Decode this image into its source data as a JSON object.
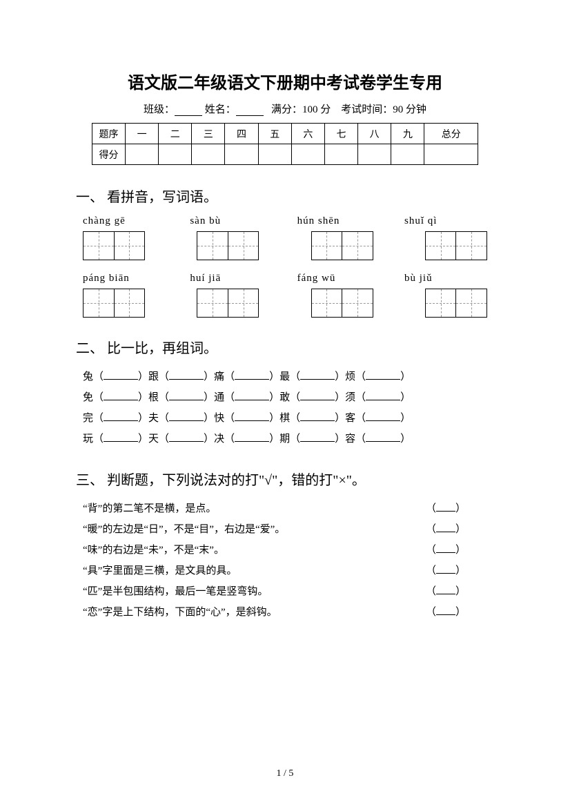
{
  "title": "语文版二年级语文下册期中考试卷学生专用",
  "info": {
    "class_label": "班级：",
    "name_label": "姓名：",
    "full_score_label": "满分：",
    "full_score_value": "100 分",
    "time_label": "考试时间：",
    "time_value": "90 分钟"
  },
  "score_table": {
    "header": [
      "题序",
      "一",
      "二",
      "三",
      "四",
      "五",
      "六",
      "七",
      "八",
      "九",
      "总分"
    ],
    "row_label": "得分"
  },
  "section1": {
    "heading": "一、 看拼音，写词语。",
    "row1": [
      "chàng gē",
      "sàn  bù",
      "hún  shēn",
      "shuǐ  qì"
    ],
    "row2": [
      "páng biān",
      "huí  jiā",
      "fáng  wū",
      "bù   jiǔ"
    ]
  },
  "section2": {
    "heading": "二、 比一比，再组词。",
    "lines": [
      [
        "兔",
        "跟",
        "痛",
        "最",
        "烦"
      ],
      [
        "免",
        "根",
        "通",
        "敢",
        "须"
      ],
      [
        "完",
        "夫",
        "快",
        "棋",
        "客"
      ],
      [
        "玩",
        "天",
        "决",
        "期",
        "容"
      ]
    ]
  },
  "section3": {
    "heading": "三、 判断题，下列说法对的打\"√\"，错的打\"×\"。",
    "items": [
      "“背”的第二笔不是横，是点。",
      "“暖”的左边是“日”，不是“目”，右边是“爱”。",
      "“味”的右边是“未”，不是“末”。",
      "“具”字里面是三横，是文具的具。",
      "“匹”是半包围结构，最后一笔是竖弯钩。",
      "“恋”字是上下结构，下面的“心”，是斜钩。"
    ]
  },
  "page": "1 / 5"
}
